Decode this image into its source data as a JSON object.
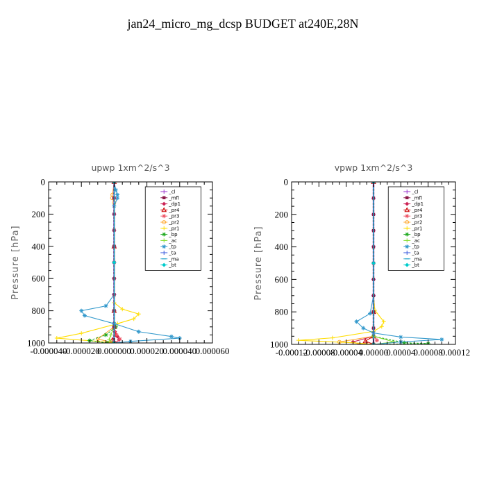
{
  "figure_title": "jan24_micro_mg_dcsp  BUDGET at240E,28N",
  "chart_data": [
    {
      "type": "line",
      "title": "upwp   1xm^2/s^3",
      "ylabel": "Pressure [hPa]",
      "xlabel": "",
      "xlim": [
        -4e-05,
        6e-05
      ],
      "ylim": [
        1000,
        0
      ],
      "x_tick_labels": [
        "-0.000040",
        "-0.000020",
        "0.000000",
        "0.000020",
        "0.000040",
        "0.000060"
      ],
      "x_ticks": [
        -4e-05,
        -2e-05,
        0,
        2e-05,
        4e-05,
        6e-05
      ],
      "y_ticks": [
        0,
        200,
        400,
        600,
        800,
        1000
      ],
      "y_tick_labels": [
        "0",
        "200",
        "400",
        "600",
        "800",
        "1000"
      ],
      "legend_position": "top-right",
      "series": [
        {
          "name": "_cl",
          "color": "#9933cc",
          "marker": "plus",
          "points": [
            [
              0,
              0
            ],
            [
              0,
              100
            ],
            [
              0,
              200
            ],
            [
              0,
              300
            ],
            [
              0,
              400
            ],
            [
              0,
              500
            ],
            [
              0,
              600
            ],
            [
              0,
              700
            ],
            [
              0,
              800
            ],
            [
              0,
              900
            ],
            [
              0,
              1000
            ]
          ]
        },
        {
          "name": "_mfl",
          "color": "#8b1a4a",
          "marker": "square",
          "points": [
            [
              0,
              0
            ],
            [
              0,
              100
            ],
            [
              0,
              200
            ],
            [
              0,
              300
            ],
            [
              0,
              400
            ],
            [
              0,
              500
            ],
            [
              0,
              600
            ],
            [
              0,
              700
            ],
            [
              0,
              800
            ],
            [
              0,
              900
            ],
            [
              0,
              1000
            ]
          ]
        },
        {
          "name": "_dp1",
          "color": "#cc2255",
          "marker": "diamond",
          "points": [
            [
              0,
              0
            ],
            [
              0,
              200
            ],
            [
              0,
              400
            ],
            [
              0,
              600
            ],
            [
              0,
              800
            ],
            [
              0,
              900
            ],
            [
              5e-07,
              930
            ],
            [
              2e-06,
              960
            ],
            [
              3e-06,
              980
            ],
            [
              1e-06,
              1000
            ]
          ]
        },
        {
          "name": "_pr4",
          "color": "#cc0000",
          "marker": "triangle",
          "points": [
            [
              0,
              0
            ],
            [
              0,
              400
            ],
            [
              0,
              800
            ],
            [
              0,
              900
            ],
            [
              1e-06,
              950
            ],
            [
              -1e-06,
              980
            ],
            [
              0,
              1000
            ]
          ]
        },
        {
          "name": "_pr3",
          "color": "#ee5566",
          "marker": "star",
          "points": [
            [
              0,
              0
            ],
            [
              0,
              400
            ],
            [
              0,
              800
            ],
            [
              0,
              900
            ],
            [
              1.5e-06,
              950
            ],
            [
              3.5e-06,
              975
            ],
            [
              1e-06,
              1000
            ]
          ]
        },
        {
          "name": "_pr2",
          "color": "#ffaa33",
          "marker": "circle",
          "points": [
            [
              0,
              0
            ],
            [
              -1e-06,
              80
            ],
            [
              -1.2e-06,
              100
            ],
            [
              0,
              130
            ],
            [
              0,
              400
            ],
            [
              0,
              800
            ],
            [
              0,
              900
            ],
            [
              -1e-05,
              975
            ],
            [
              0,
              1000
            ]
          ]
        },
        {
          "name": "_pr1",
          "color": "#ffdd00",
          "marker": "plus",
          "points": [
            [
              0,
              0
            ],
            [
              0,
              300
            ],
            [
              0,
              600
            ],
            [
              0,
              750
            ],
            [
              5e-06,
              790
            ],
            [
              1.5e-05,
              820
            ],
            [
              1.2e-05,
              850
            ],
            [
              2e-06,
              880
            ],
            [
              -2e-05,
              940
            ],
            [
              -3.5e-05,
              970
            ],
            [
              -1e-05,
              990
            ],
            [
              0,
              1000
            ]
          ]
        },
        {
          "name": "_bp",
          "color": "#22aa22",
          "marker": "star",
          "points": [
            [
              0,
              0
            ],
            [
              0,
              800
            ],
            [
              0,
              880
            ],
            [
              1e-06,
              900
            ],
            [
              -5e-06,
              950
            ],
            [
              -1.5e-05,
              985
            ],
            [
              -4e-06,
              1000
            ]
          ]
        },
        {
          "name": "_ac",
          "color": "#88dd33",
          "marker": "plus",
          "points": [
            [
              0,
              0
            ],
            [
              0,
              800
            ],
            [
              0,
              900
            ],
            [
              -2e-06,
              950
            ],
            [
              -3e-06,
              980
            ],
            [
              0,
              1000
            ]
          ]
        },
        {
          "name": "_tp",
          "color": "#3399cc",
          "marker": "star",
          "points": [
            [
              0,
              0
            ],
            [
              1e-06,
              50
            ],
            [
              2e-06,
              80
            ],
            [
              2e-06,
              100
            ],
            [
              0,
              150
            ],
            [
              0,
              400
            ],
            [
              0,
              700
            ],
            [
              -5e-06,
              770
            ],
            [
              -2e-05,
              800
            ],
            [
              -1.8e-05,
              830
            ],
            [
              0,
              880
            ],
            [
              1.5e-05,
              930
            ],
            [
              3.5e-05,
              960
            ],
            [
              4e-05,
              970
            ],
            [
              1e-05,
              990
            ],
            [
              0,
              1000
            ]
          ]
        },
        {
          "name": "_ta",
          "color": "#3355dd",
          "marker": "plus",
          "points": [
            [
              0,
              0
            ],
            [
              0,
              500
            ],
            [
              0,
              1000
            ]
          ]
        },
        {
          "name": "_ma",
          "color": "#33aacc",
          "marker": "dash",
          "points": [
            [
              0,
              0
            ],
            [
              0,
              500
            ],
            [
              0,
              1000
            ]
          ]
        },
        {
          "name": "_bt",
          "color": "#00cccc",
          "marker": "diamond",
          "points": [
            [
              0,
              0
            ],
            [
              0,
              500
            ],
            [
              0,
              1000
            ]
          ]
        }
      ]
    },
    {
      "type": "line",
      "title": "vpwp   1xm^2/s^3",
      "ylabel": "Pressure [hPa]",
      "xlabel": "",
      "xlim": [
        -0.00012,
        0.00012
      ],
      "ylim": [
        1000,
        0
      ],
      "x_tick_labels": [
        "-0.00012",
        "-0.00008",
        "-0.00004",
        "0.00000",
        "0.00004",
        "0.00008",
        "0.00012"
      ],
      "x_ticks": [
        -0.00012,
        -8e-05,
        -4e-05,
        0,
        4e-05,
        8e-05,
        0.00012
      ],
      "y_ticks": [
        0,
        200,
        400,
        600,
        800,
        1000
      ],
      "y_tick_labels": [
        "0",
        "200",
        "400",
        "600",
        "800",
        "1000"
      ],
      "legend_position": "top-right",
      "series": [
        {
          "name": "_cl",
          "color": "#9933cc",
          "marker": "plus",
          "points": [
            [
              0,
              0
            ],
            [
              0,
              100
            ],
            [
              0,
              200
            ],
            [
              0,
              300
            ],
            [
              0,
              400
            ],
            [
              0,
              500
            ],
            [
              0,
              600
            ],
            [
              0,
              700
            ],
            [
              0,
              800
            ],
            [
              0,
              900
            ],
            [
              0,
              1000
            ]
          ]
        },
        {
          "name": "_mfl",
          "color": "#8b1a4a",
          "marker": "square",
          "points": [
            [
              0,
              0
            ],
            [
              0,
              100
            ],
            [
              0,
              200
            ],
            [
              0,
              300
            ],
            [
              0,
              400
            ],
            [
              0,
              500
            ],
            [
              0,
              600
            ],
            [
              0,
              700
            ],
            [
              0,
              800
            ],
            [
              0,
              900
            ],
            [
              0,
              1000
            ]
          ]
        },
        {
          "name": "_dp1",
          "color": "#cc2255",
          "marker": "diamond",
          "points": [
            [
              0,
              0
            ],
            [
              0,
              800
            ],
            [
              0,
              950
            ],
            [
              -3e-05,
              985
            ],
            [
              -2e-05,
              1000
            ]
          ]
        },
        {
          "name": "_pr4",
          "color": "#cc0000",
          "marker": "triangle",
          "points": [
            [
              0,
              0
            ],
            [
              0,
              800
            ],
            [
              0,
              950
            ],
            [
              -1.2e-05,
              980
            ],
            [
              0,
              1000
            ]
          ]
        },
        {
          "name": "_pr3",
          "color": "#ee5566",
          "marker": "star",
          "points": [
            [
              0,
              0
            ],
            [
              0,
              800
            ],
            [
              0,
              950
            ],
            [
              5e-06,
              975
            ],
            [
              0,
              1000
            ]
          ]
        },
        {
          "name": "_pr2",
          "color": "#ffaa33",
          "marker": "circle",
          "points": [
            [
              0,
              0
            ],
            [
              0,
              800
            ],
            [
              0,
              950
            ],
            [
              -5e-05,
              985
            ],
            [
              0,
              1000
            ]
          ]
        },
        {
          "name": "_pr1",
          "color": "#ffdd00",
          "marker": "plus",
          "points": [
            [
              0,
              0
            ],
            [
              0,
              700
            ],
            [
              2e-06,
              790
            ],
            [
              1.5e-05,
              860
            ],
            [
              1.2e-05,
              890
            ],
            [
              0,
              920
            ],
            [
              -6e-05,
              960
            ],
            [
              -0.00011,
              975
            ],
            [
              -3e-05,
              990
            ],
            [
              0,
              1000
            ]
          ]
        },
        {
          "name": "_bp",
          "color": "#22aa22",
          "marker": "star",
          "points": [
            [
              0,
              0
            ],
            [
              0,
              800
            ],
            [
              0,
              950
            ],
            [
              4.5e-05,
              990
            ],
            [
              8e-05,
              995
            ],
            [
              0,
              1000
            ]
          ]
        },
        {
          "name": "_ac",
          "color": "#88dd33",
          "marker": "plus",
          "points": [
            [
              0,
              0
            ],
            [
              0,
              800
            ],
            [
              0,
              950
            ],
            [
              3e-05,
              985
            ],
            [
              0,
              1000
            ]
          ]
        },
        {
          "name": "_tp",
          "color": "#3399cc",
          "marker": "star",
          "points": [
            [
              0,
              0
            ],
            [
              0,
              700
            ],
            [
              -5e-06,
              810
            ],
            [
              -2.5e-05,
              860
            ],
            [
              -1.5e-05,
              900
            ],
            [
              0,
              930
            ],
            [
              4e-05,
              955
            ],
            [
              0.0001,
              970
            ],
            [
              4e-05,
              985
            ],
            [
              0,
              1000
            ]
          ]
        },
        {
          "name": "_ta",
          "color": "#3355dd",
          "marker": "plus",
          "points": [
            [
              0,
              0
            ],
            [
              0,
              500
            ],
            [
              0,
              1000
            ]
          ]
        },
        {
          "name": "_ma",
          "color": "#33aacc",
          "marker": "dash",
          "points": [
            [
              0,
              0
            ],
            [
              0,
              500
            ],
            [
              0,
              1000
            ]
          ]
        },
        {
          "name": "_bt",
          "color": "#00cccc",
          "marker": "diamond",
          "points": [
            [
              0,
              0
            ],
            [
              0,
              500
            ],
            [
              0,
              1000
            ]
          ]
        }
      ]
    }
  ]
}
